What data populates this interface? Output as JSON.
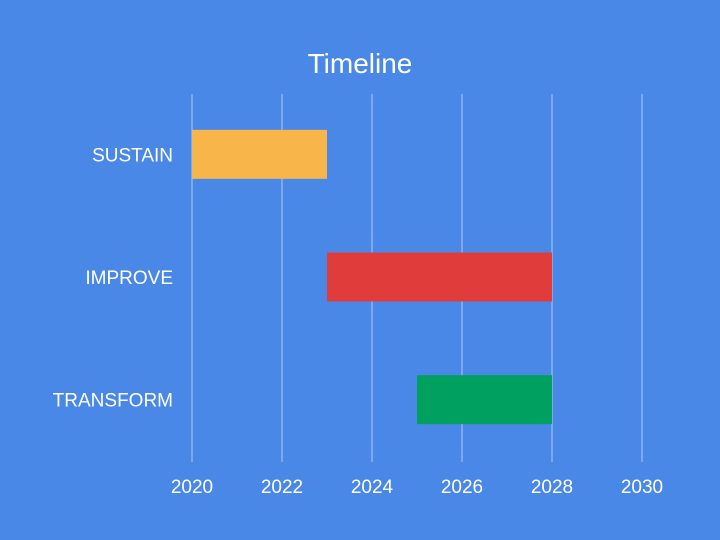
{
  "chart_data": {
    "type": "bar",
    "orientation": "horizontal-range",
    "title": "Timeline",
    "xlabel": "",
    "ylabel": "",
    "categories": [
      "SUSTAIN",
      "IMPROVE",
      "TRANSFORM"
    ],
    "ranges": [
      {
        "category": "SUSTAIN",
        "start": 2020,
        "end": 2023,
        "color": "#f8b54a"
      },
      {
        "category": "IMPROVE",
        "start": 2023,
        "end": 2028,
        "color": "#e03c3c"
      },
      {
        "category": "TRANSFORM",
        "start": 2025,
        "end": 2028,
        "color": "#00a060"
      }
    ],
    "xlim": [
      2020,
      2030
    ],
    "xticks": [
      "2020",
      "2022",
      "2024",
      "2026",
      "2028",
      "2030"
    ],
    "grid": "vertical",
    "legend": "none",
    "background": "#4a88e8"
  }
}
